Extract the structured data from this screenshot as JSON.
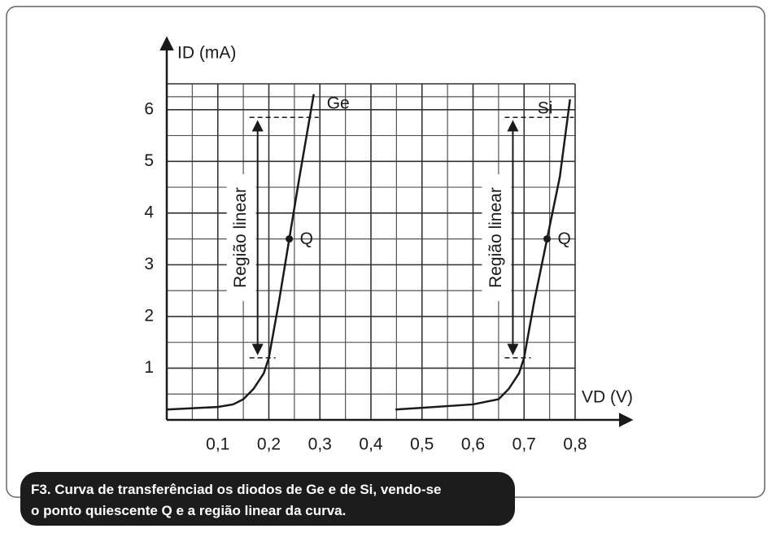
{
  "chart_data": {
    "type": "line",
    "x_label": "VD (V)",
    "y_label": "ID (mA)",
    "xlim": [
      0,
      0.8
    ],
    "ylim": [
      0,
      6.5
    ],
    "xticks": [
      {
        "value": 0.1,
        "label": "0,1"
      },
      {
        "value": 0.2,
        "label": "0,2"
      },
      {
        "value": 0.3,
        "label": "0,3"
      },
      {
        "value": 0.4,
        "label": "0,4"
      },
      {
        "value": 0.5,
        "label": "0,5"
      },
      {
        "value": 0.6,
        "label": "0,6"
      },
      {
        "value": 0.7,
        "label": "0,7"
      },
      {
        "value": 0.8,
        "label": "0,8"
      }
    ],
    "yticks": [
      1,
      2,
      3,
      4,
      5,
      6
    ],
    "grid": true,
    "minor_grid": true,
    "series": [
      {
        "name": "Ge",
        "color": "#1a1a1a",
        "x": [
          0,
          0.1,
          0.13,
          0.15,
          0.17,
          0.19,
          0.2,
          0.22,
          0.24,
          0.26,
          0.288
        ],
        "values": [
          0.2,
          0.25,
          0.3,
          0.4,
          0.6,
          0.9,
          1.2,
          2.3,
          3.5,
          4.7,
          6.3
        ]
      },
      {
        "name": "Si",
        "color": "#1a1a1a",
        "x": [
          0.448,
          0.6,
          0.65,
          0.67,
          0.69,
          0.7,
          0.72,
          0.745,
          0.77,
          0.79
        ],
        "values": [
          0.2,
          0.3,
          0.4,
          0.6,
          0.9,
          1.2,
          2.3,
          3.5,
          4.7,
          6.2
        ]
      }
    ],
    "annotations": [
      {
        "text": "Q",
        "x": 0.24,
        "y": 3.5
      },
      {
        "text": "Q",
        "x": 0.745,
        "y": 3.5
      }
    ],
    "regions": [
      {
        "label": "Região linear",
        "x": 0.178,
        "y": [
          1.2,
          5.85
        ]
      },
      {
        "label": "Região linear",
        "x": 0.678,
        "y": [
          1.2,
          5.85
        ]
      }
    ],
    "caption": [
      "F3. Curva de transferênciad os diodos de Ge e de Si, vendo-se",
      "o ponto quiescente Q e a região linear da curva."
    ]
  }
}
